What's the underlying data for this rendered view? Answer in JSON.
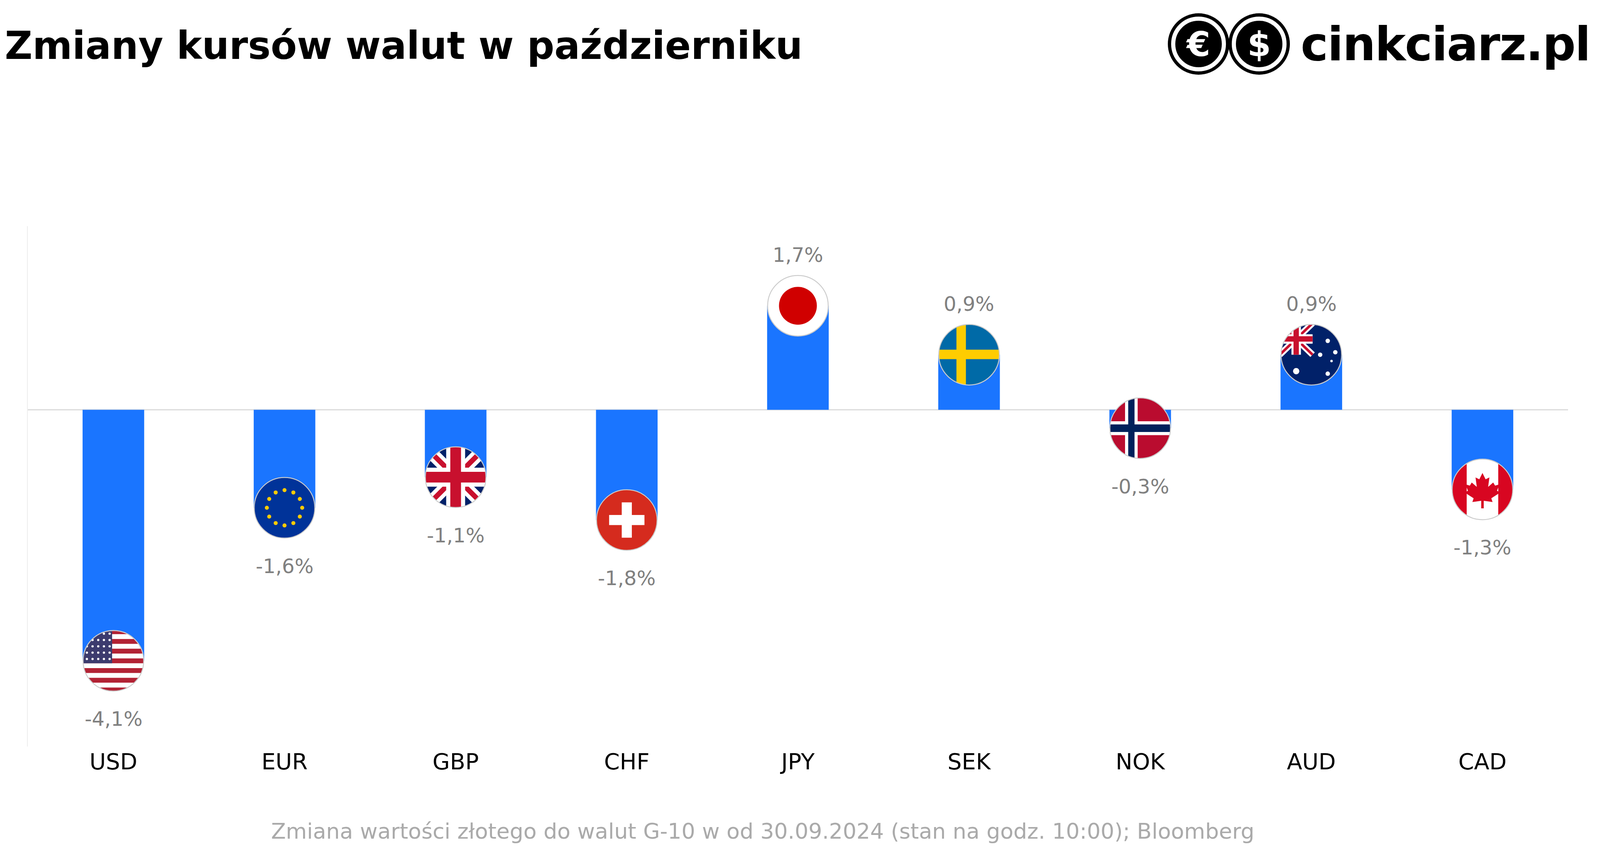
{
  "chart_data": {
    "type": "bar",
    "title": "Zmiany kursów walut w październiku",
    "categories": [
      "USD",
      "EUR",
      "GBP",
      "CHF",
      "JPY",
      "SEK",
      "NOK",
      "AUD",
      "CAD"
    ],
    "values": [
      -4.1,
      -1.6,
      -1.1,
      -1.8,
      1.7,
      0.9,
      -0.3,
      0.9,
      -1.3
    ],
    "value_labels": [
      "-4,1%",
      "-1,6%",
      "-1,1%",
      "-1,8%",
      "1,7%",
      "0,9%",
      "-0,3%",
      "0,9%",
      "-1,3%"
    ],
    "data_labels": true,
    "color": "#1a75ff",
    "ylim": [
      -5.5,
      3
    ],
    "yticks": [
      0
    ],
    "grid": true,
    "tick_labels": "x",
    "note": "Zmiana wartości złotego do walut G-10 w od 30.09.2024 (stan na godz. 10:00); Bloomberg",
    "logo": {
      "symbols": [
        "€",
        "$"
      ],
      "text": "cinkciarz.pl"
    }
  }
}
